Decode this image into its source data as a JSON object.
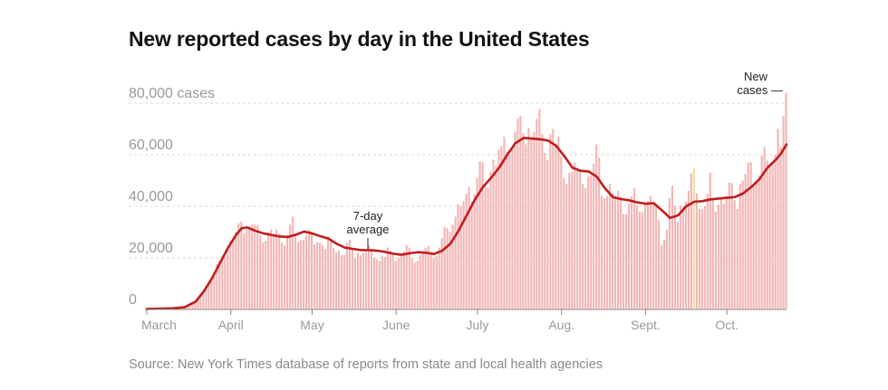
{
  "title": "New reported cases by day in the United States",
  "source": "Source: New York Times database of reports from state and local health agencies",
  "annotations": {
    "avg_line1": "7-day",
    "avg_line2": "average",
    "new_line1": "New",
    "new_line2": "cases —"
  },
  "colors": {
    "bars": "#f2b6b6",
    "highlight_bar": "#f7dfa0",
    "average_line": "#bf1e1e",
    "grid": "#d8d8d8",
    "text_muted": "#999999"
  },
  "chart_data": {
    "type": "bar",
    "title": "New reported cases by day in the United States",
    "y_tick_labels": [
      "0",
      "20,000",
      "40,000",
      "60,000",
      "80,000 cases"
    ],
    "y_ticks": [
      0,
      20000,
      40000,
      60000,
      80000
    ],
    "ylim": [
      0,
      85000
    ],
    "x_tick_labels": [
      "March",
      "April",
      "May",
      "June",
      "July",
      "Aug.",
      "Sept.",
      "Oct."
    ],
    "x_start": "2020-03-01",
    "x_end": "2020-10-23",
    "grid": true,
    "highlight_date": "2020-09-19",
    "series": [
      {
        "name": "New cases",
        "type": "bar",
        "points": [
          [
            "2020-03-01",
            0
          ],
          [
            "2020-03-05",
            100
          ],
          [
            "2020-03-10",
            300
          ],
          [
            "2020-03-15",
            1000
          ],
          [
            "2020-03-19",
            3500
          ],
          [
            "2020-03-22",
            6500
          ],
          [
            "2020-03-25",
            12000
          ],
          [
            "2020-03-28",
            19000
          ],
          [
            "2020-03-31",
            24000
          ],
          [
            "2020-04-03",
            30000
          ],
          [
            "2020-04-05",
            34000
          ],
          [
            "2020-04-07",
            31000
          ],
          [
            "2020-04-10",
            33000
          ],
          [
            "2020-04-13",
            26000
          ],
          [
            "2020-04-15",
            30000
          ],
          [
            "2020-04-18",
            31000
          ],
          [
            "2020-04-20",
            26000
          ],
          [
            "2020-04-22",
            29000
          ],
          [
            "2020-04-24",
            36000
          ],
          [
            "2020-04-26",
            26000
          ],
          [
            "2020-04-28",
            27000
          ],
          [
            "2020-04-30",
            31000
          ],
          [
            "2020-05-03",
            26000
          ],
          [
            "2020-05-05",
            25000
          ],
          [
            "2020-05-08",
            27000
          ],
          [
            "2020-05-10",
            22000
          ],
          [
            "2020-05-12",
            21000
          ],
          [
            "2020-05-15",
            27000
          ],
          [
            "2020-05-17",
            20000
          ],
          [
            "2020-05-19",
            21000
          ],
          [
            "2020-05-22",
            25000
          ],
          [
            "2020-05-24",
            20000
          ],
          [
            "2020-05-26",
            19000
          ],
          [
            "2020-05-29",
            24000
          ],
          [
            "2020-05-31",
            21000
          ],
          [
            "2020-06-02",
            20000
          ],
          [
            "2020-06-05",
            25000
          ],
          [
            "2020-06-07",
            20000
          ],
          [
            "2020-06-09",
            19000
          ],
          [
            "2020-06-12",
            24000
          ],
          [
            "2020-06-15",
            20000
          ],
          [
            "2020-06-17",
            24000
          ],
          [
            "2020-06-19",
            32000
          ],
          [
            "2020-06-21",
            30000
          ],
          [
            "2020-06-23",
            36000
          ],
          [
            "2020-06-25",
            40000
          ],
          [
            "2020-06-27",
            45000
          ],
          [
            "2020-06-29",
            42000
          ],
          [
            "2020-07-01",
            51000
          ],
          [
            "2020-07-03",
            57000
          ],
          [
            "2020-07-05",
            47000
          ],
          [
            "2020-07-07",
            58000
          ],
          [
            "2020-07-09",
            62000
          ],
          [
            "2020-07-11",
            67000
          ],
          [
            "2020-07-13",
            60000
          ],
          [
            "2020-07-15",
            69000
          ],
          [
            "2020-07-17",
            75000
          ],
          [
            "2020-07-19",
            64000
          ],
          [
            "2020-07-21",
            66000
          ],
          [
            "2020-07-23",
            74000
          ],
          [
            "2020-07-25",
            68000
          ],
          [
            "2020-07-27",
            58000
          ],
          [
            "2020-07-29",
            70000
          ],
          [
            "2020-07-31",
            67000
          ],
          [
            "2020-08-02",
            51000
          ],
          [
            "2020-08-04",
            53000
          ],
          [
            "2020-08-06",
            57000
          ],
          [
            "2020-08-08",
            54000
          ],
          [
            "2020-08-10",
            47000
          ],
          [
            "2020-08-12",
            52000
          ],
          [
            "2020-08-14",
            64000
          ],
          [
            "2020-08-16",
            44000
          ],
          [
            "2020-08-18",
            44000
          ],
          [
            "2020-08-20",
            45000
          ],
          [
            "2020-08-22",
            46000
          ],
          [
            "2020-08-24",
            37000
          ],
          [
            "2020-08-26",
            41000
          ],
          [
            "2020-08-28",
            47000
          ],
          [
            "2020-08-30",
            38000
          ],
          [
            "2020-09-01",
            41000
          ],
          [
            "2020-09-03",
            44000
          ],
          [
            "2020-09-05",
            41000
          ],
          [
            "2020-09-07",
            25000
          ],
          [
            "2020-09-09",
            31000
          ],
          [
            "2020-09-11",
            48000
          ],
          [
            "2020-09-13",
            34000
          ],
          [
            "2020-09-15",
            40000
          ],
          [
            "2020-09-17",
            46000
          ],
          [
            "2020-09-19",
            55000
          ],
          [
            "2020-09-21",
            39000
          ],
          [
            "2020-09-23",
            40000
          ],
          [
            "2020-09-25",
            53000
          ],
          [
            "2020-09-27",
            38000
          ],
          [
            "2020-09-29",
            43000
          ],
          [
            "2020-10-01",
            44000
          ],
          [
            "2020-10-03",
            49000
          ],
          [
            "2020-10-05",
            39000
          ],
          [
            "2020-10-07",
            50000
          ],
          [
            "2020-10-09",
            57000
          ],
          [
            "2020-10-11",
            48000
          ],
          [
            "2020-10-13",
            52000
          ],
          [
            "2020-10-15",
            63000
          ],
          [
            "2020-10-17",
            56000
          ],
          [
            "2020-10-19",
            60000
          ],
          [
            "2020-10-20",
            70000
          ],
          [
            "2020-10-21",
            63000
          ],
          [
            "2020-10-22",
            75000
          ],
          [
            "2020-10-23",
            84000
          ]
        ]
      },
      {
        "name": "7-day average",
        "type": "line",
        "points": [
          [
            "2020-03-01",
            200
          ],
          [
            "2020-03-10",
            400
          ],
          [
            "2020-03-15",
            900
          ],
          [
            "2020-03-19",
            3000
          ],
          [
            "2020-03-22",
            7000
          ],
          [
            "2020-03-25",
            12000
          ],
          [
            "2020-03-28",
            18000
          ],
          [
            "2020-03-31",
            24000
          ],
          [
            "2020-04-03",
            29000
          ],
          [
            "2020-04-05",
            31500
          ],
          [
            "2020-04-07",
            31800
          ],
          [
            "2020-04-10",
            30500
          ],
          [
            "2020-04-13",
            29500
          ],
          [
            "2020-04-16",
            28900
          ],
          [
            "2020-04-19",
            28300
          ],
          [
            "2020-04-22",
            28100
          ],
          [
            "2020-04-25",
            29000
          ],
          [
            "2020-04-28",
            30200
          ],
          [
            "2020-05-01",
            29500
          ],
          [
            "2020-05-04",
            28400
          ],
          [
            "2020-05-07",
            27500
          ],
          [
            "2020-05-10",
            25500
          ],
          [
            "2020-05-13",
            24000
          ],
          [
            "2020-05-16",
            23500
          ],
          [
            "2020-05-19",
            23000
          ],
          [
            "2020-05-22",
            23000
          ],
          [
            "2020-05-25",
            22800
          ],
          [
            "2020-05-28",
            22300
          ],
          [
            "2020-05-31",
            21600
          ],
          [
            "2020-06-03",
            21200
          ],
          [
            "2020-06-06",
            21800
          ],
          [
            "2020-06-09",
            22200
          ],
          [
            "2020-06-12",
            22000
          ],
          [
            "2020-06-15",
            21500
          ],
          [
            "2020-06-18",
            22800
          ],
          [
            "2020-06-21",
            25500
          ],
          [
            "2020-06-24",
            30500
          ],
          [
            "2020-06-27",
            36500
          ],
          [
            "2020-06-30",
            42500
          ],
          [
            "2020-07-03",
            47500
          ],
          [
            "2020-07-06",
            51000
          ],
          [
            "2020-07-09",
            55000
          ],
          [
            "2020-07-12",
            60000
          ],
          [
            "2020-07-15",
            64500
          ],
          [
            "2020-07-18",
            66500
          ],
          [
            "2020-07-21",
            66300
          ],
          [
            "2020-07-24",
            66000
          ],
          [
            "2020-07-27",
            65500
          ],
          [
            "2020-07-30",
            63500
          ],
          [
            "2020-08-02",
            59500
          ],
          [
            "2020-08-05",
            55000
          ],
          [
            "2020-08-08",
            53800
          ],
          [
            "2020-08-11",
            53500
          ],
          [
            "2020-08-14",
            51500
          ],
          [
            "2020-08-17",
            47000
          ],
          [
            "2020-08-20",
            43500
          ],
          [
            "2020-08-23",
            42800
          ],
          [
            "2020-08-26",
            42300
          ],
          [
            "2020-08-29",
            41500
          ],
          [
            "2020-09-01",
            41000
          ],
          [
            "2020-09-04",
            41200
          ],
          [
            "2020-09-07",
            38500
          ],
          [
            "2020-09-10",
            35500
          ],
          [
            "2020-09-13",
            36500
          ],
          [
            "2020-09-16",
            40000
          ],
          [
            "2020-09-19",
            41800
          ],
          [
            "2020-09-22",
            42000
          ],
          [
            "2020-09-25",
            42700
          ],
          [
            "2020-09-28",
            43000
          ],
          [
            "2020-10-01",
            43300
          ],
          [
            "2020-10-04",
            43600
          ],
          [
            "2020-10-07",
            45000
          ],
          [
            "2020-10-10",
            47500
          ],
          [
            "2020-10-13",
            50500
          ],
          [
            "2020-10-16",
            55000
          ],
          [
            "2020-10-19",
            58000
          ],
          [
            "2020-10-21",
            60500
          ],
          [
            "2020-10-23",
            64000
          ]
        ]
      }
    ]
  }
}
